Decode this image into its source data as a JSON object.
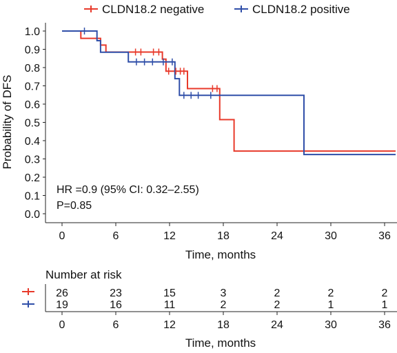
{
  "chart_data": {
    "type": "line",
    "subtype": "kaplan-meier",
    "ylabel": "Probability of DFS",
    "xlabel": "Time, months",
    "xlim": [
      0,
      38
    ],
    "ylim": [
      0,
      1.0
    ],
    "xticks": [
      "0",
      "6",
      "12",
      "18",
      "24",
      "30",
      "36"
    ],
    "yticks": [
      "0.0",
      "0.1",
      "0.2",
      "0.3",
      "0.4",
      "0.5",
      "0.6",
      "0.7",
      "0.8",
      "0.9",
      "1.0"
    ],
    "legend_position": "top",
    "series": [
      {
        "name": "CLDN18.2 negative",
        "color": "#e8392a",
        "steps": [
          [
            0,
            1.0
          ],
          [
            2.1,
            0.96
          ],
          [
            4.3,
            0.923
          ],
          [
            4.9,
            0.885
          ],
          [
            11.2,
            0.846
          ],
          [
            11.6,
            0.78
          ],
          [
            14,
            0.685
          ],
          [
            17.6,
            0.515
          ],
          [
            19.2,
            0.343
          ],
          [
            38,
            0.343
          ]
        ],
        "censored": [
          [
            8.2,
            0.885
          ],
          [
            8.8,
            0.885
          ],
          [
            10.2,
            0.885
          ],
          [
            10.8,
            0.885
          ],
          [
            11.9,
            0.78
          ],
          [
            12.7,
            0.78
          ],
          [
            13.2,
            0.78
          ],
          [
            13.6,
            0.78
          ],
          [
            16.8,
            0.685
          ],
          [
            17.3,
            0.685
          ]
        ]
      },
      {
        "name": "CLDN18.2 positive",
        "color": "#2f4ea8",
        "steps": [
          [
            0,
            1.0
          ],
          [
            3.9,
            0.947
          ],
          [
            4.3,
            0.884
          ],
          [
            7.4,
            0.831
          ],
          [
            12.6,
            0.739
          ],
          [
            13.1,
            0.648
          ],
          [
            27,
            0.324
          ],
          [
            38,
            0.324
          ]
        ],
        "censored": [
          [
            2.5,
            1.0
          ],
          [
            8.3,
            0.831
          ],
          [
            9.2,
            0.831
          ],
          [
            10.1,
            0.831
          ],
          [
            11.3,
            0.831
          ],
          [
            12.3,
            0.831
          ],
          [
            13.6,
            0.648
          ],
          [
            14.4,
            0.648
          ],
          [
            15.2,
            0.648
          ],
          [
            16.6,
            0.648
          ]
        ]
      }
    ],
    "annotation": {
      "hr": "HR =0.9 (95% CI: 0.32–2.55)",
      "p": "P=0.85"
    },
    "risk_table": {
      "title": "Number at risk",
      "times": [
        0,
        6,
        12,
        18,
        24,
        30,
        36
      ],
      "xticks": [
        "0",
        "6",
        "12",
        "18",
        "24",
        "30",
        "36"
      ],
      "xlabel": "Time, months",
      "rows": [
        {
          "series": "CLDN18.2 negative",
          "counts": [
            "26",
            "23",
            "15",
            "3",
            "2",
            "2",
            "2"
          ]
        },
        {
          "series": "CLDN18.2 positive",
          "counts": [
            "19",
            "16",
            "11",
            "2",
            "2",
            "1",
            "1"
          ]
        }
      ]
    }
  }
}
